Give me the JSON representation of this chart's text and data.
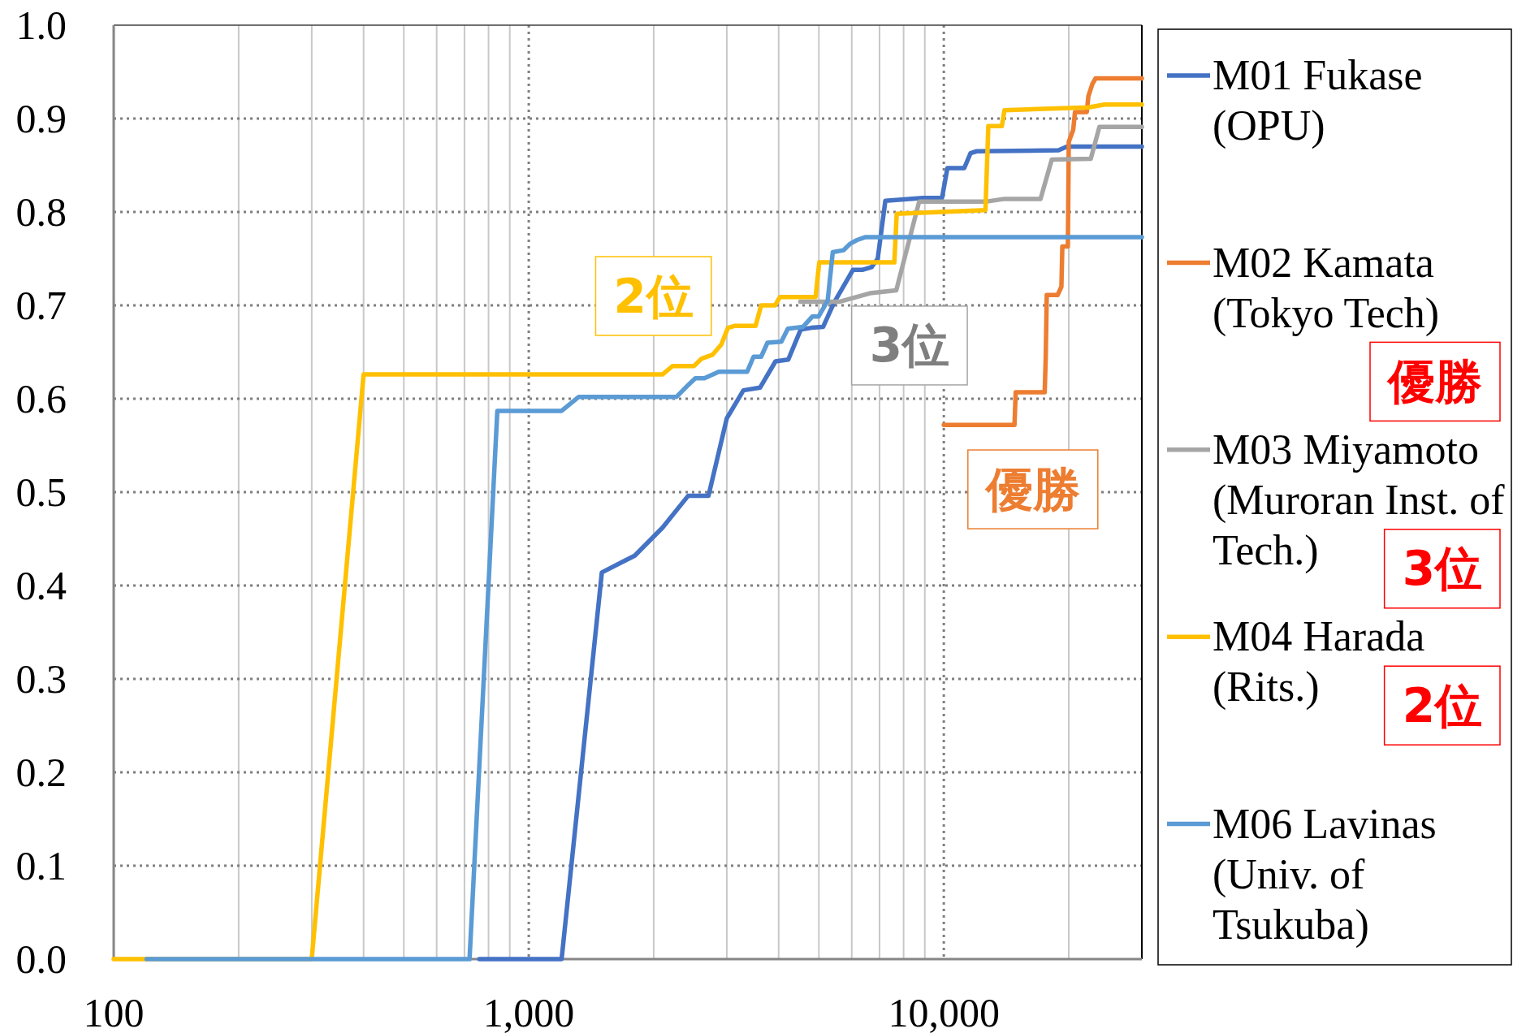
{
  "chart_data": {
    "type": "line",
    "log": "x",
    "xlim": [
      100,
      30000
    ],
    "xticks": [
      100,
      {
        "value": 200,
        "label": null
      },
      {
        "value": 300,
        "label": null
      },
      {
        "value": 400,
        "label": null
      },
      {
        "value": 500,
        "label": null
      },
      {
        "value": 600,
        "label": null
      },
      {
        "value": 700,
        "label": null
      },
      {
        "value": 800,
        "label": null
      },
      {
        "value": 900,
        "label": null
      },
      {
        "value": 1000,
        "label": "1,000"
      },
      {
        "value": 2000,
        "label": null
      },
      {
        "value": 3000,
        "label": null
      },
      {
        "value": 4000,
        "label": null
      },
      {
        "value": 5000,
        "label": null
      },
      {
        "value": 6000,
        "label": null
      },
      {
        "value": 7000,
        "label": null
      },
      {
        "value": 8000,
        "label": null
      },
      {
        "value": 9000,
        "label": null
      },
      {
        "value": 10000,
        "label": "10,000"
      },
      {
        "value": 20000,
        "label": null
      }
    ],
    "ylim": [
      0,
      1
    ],
    "yticks": [
      {
        "value": 0,
        "label": "0.0"
      },
      0.1,
      0.2,
      0.3,
      0.4,
      0.5,
      0.6,
      0.7,
      0.8,
      0.9,
      {
        "value": 1,
        "label": "1.0"
      }
    ],
    "grid": true,
    "legend": "right",
    "series": [
      {
        "name": "M01 Fukase (OPU)",
        "color": "#4472c4",
        "x": [
          760,
          1200,
          1500,
          1800,
          2100,
          2420,
          2710,
          3000,
          3290,
          3610,
          3930,
          4220,
          4520,
          4800,
          5120,
          5440,
          6040,
          6360,
          6700,
          6930,
          7230,
          8900,
          9900,
          10200,
          11200,
          11600,
          12000,
          18900,
          19800,
          30000
        ],
        "values": [
          0,
          0,
          0.414,
          0.432,
          0.462,
          0.496,
          0.496,
          0.579,
          0.609,
          0.612,
          0.64,
          0.642,
          0.674,
          0.676,
          0.677,
          0.703,
          0.738,
          0.738,
          0.741,
          0.75,
          0.812,
          0.815,
          0.815,
          0.847,
          0.847,
          0.863,
          0.865,
          0.866,
          0.87,
          0.87
        ]
      },
      {
        "name": "M02 Kamata (Tokyo Tech)",
        "color": "#ed7d31",
        "x": [
          10000,
          14800,
          14900,
          17500,
          17600,
          17700,
          18800,
          19200,
          19300,
          19900,
          20000,
          20500,
          20700,
          22100,
          22300,
          22800,
          23200,
          30000
        ],
        "values": [
          0.572,
          0.572,
          0.607,
          0.607,
          0.644,
          0.711,
          0.711,
          0.72,
          0.763,
          0.763,
          0.875,
          0.888,
          0.907,
          0.907,
          0.924,
          0.937,
          0.943,
          0.943
        ]
      },
      {
        "name": "M03 Miyamoto (Muroran Inst. of Tech.)",
        "color": "#a5a5a5",
        "x": [
          4510,
          5620,
          6640,
          7680,
          8720,
          12600,
          14000,
          17100,
          18200,
          22600,
          23700,
          30000
        ],
        "values": [
          0.704,
          0.704,
          0.713,
          0.716,
          0.811,
          0.811,
          0.814,
          0.814,
          0.856,
          0.857,
          0.891,
          0.891
        ]
      },
      {
        "name": "M04 Harada (Rits.)",
        "color": "#ffc000",
        "x": [
          100,
          300,
          400,
          2100,
          2220,
          2500,
          2610,
          2770,
          2910,
          3020,
          3130,
          3520,
          3630,
          3920,
          4030,
          4910,
          5010,
          7600,
          7700,
          12600,
          12800,
          13800,
          14000,
          22300,
          24400,
          30000
        ],
        "values": [
          0,
          0,
          0.626,
          0.626,
          0.635,
          0.635,
          0.643,
          0.647,
          0.658,
          0.676,
          0.678,
          0.678,
          0.7,
          0.7,
          0.709,
          0.709,
          0.746,
          0.746,
          0.798,
          0.802,
          0.892,
          0.892,
          0.909,
          0.912,
          0.915,
          0.915
        ]
      },
      {
        "name": "M06 Lavinas (Univ. of Tsukuba)",
        "color": "#5b9bd5",
        "x": [
          120,
          720,
          840,
          1200,
          1320,
          2270,
          2400,
          2520,
          2650,
          2870,
          3360,
          3480,
          3630,
          3760,
          4060,
          4210,
          4580,
          4820,
          4990,
          5250,
          5400,
          5730,
          5950,
          6180,
          6460,
          30000
        ],
        "values": [
          0,
          0,
          0.587,
          0.587,
          0.602,
          0.602,
          0.613,
          0.622,
          0.622,
          0.629,
          0.629,
          0.645,
          0.645,
          0.66,
          0.661,
          0.675,
          0.677,
          0.688,
          0.688,
          0.705,
          0.757,
          0.759,
          0.766,
          0.77,
          0.773,
          0.773
        ]
      }
    ],
    "annotations": [
      "2位",
      "3位",
      "優勝",
      "優勝",
      "3位",
      "2位"
    ]
  }
}
